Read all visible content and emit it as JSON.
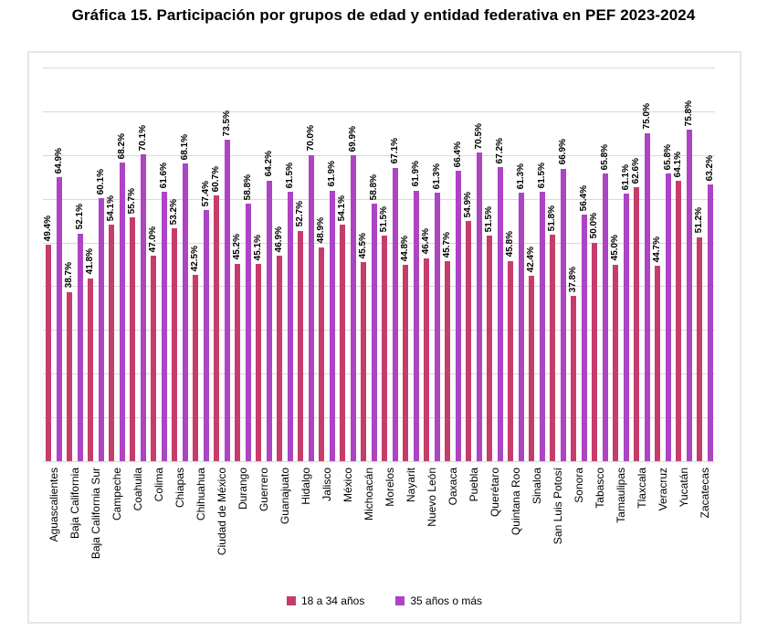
{
  "title": "Gráfica 15. Participación por grupos de edad y entidad federativa en PEF 2023-2024",
  "colors": {
    "series_18_34": "#c63d6b",
    "series_35_plus": "#ac44c4",
    "gridline": "#d9d9d9",
    "chart_border": "#e6e6e6"
  },
  "chart_data": {
    "type": "bar",
    "title": "Gráfica 15. Participación por grupos de edad y entidad federativa en PEF 2023-2024",
    "xlabel": "",
    "ylabel": "",
    "ylim": [
      0,
      90
    ],
    "gridline_step": 10,
    "grid": true,
    "y_axis_labels_visible": false,
    "legend_position": "bottom",
    "value_labels": "rotated_percent_one_decimal",
    "categories": [
      "Aguascalientes",
      "Baja California",
      "Baja California Sur",
      "Campeche",
      "Coahuila",
      "Colima",
      "Chiapas",
      "Chihuahua",
      "Ciudad de México",
      "Durango",
      "Guerrero",
      "Guanajuato",
      "Hidalgo",
      "Jalisco",
      "México",
      "Michoacán",
      "Morelos",
      "Nayarit",
      "Nuevo León",
      "Oaxaca",
      "Puebla",
      "Querétaro",
      "Quintana Roo",
      "Sinaloa",
      "San Luis Potosí",
      "Sonora",
      "Tabasco",
      "Tamaulipas",
      "Tlaxcala",
      "Veracruz",
      "Yucatán",
      "Zacatecas"
    ],
    "series": [
      {
        "name": "18 a 34 años",
        "color": "#c63d6b",
        "values": [
          49.4,
          38.7,
          41.8,
          54.1,
          55.7,
          47.0,
          53.2,
          42.5,
          60.7,
          45.2,
          45.1,
          46.9,
          52.7,
          48.9,
          54.1,
          45.5,
          51.5,
          44.8,
          46.4,
          45.7,
          54.9,
          51.5,
          45.8,
          42.4,
          51.8,
          37.8,
          50.0,
          45.0,
          62.6,
          44.7,
          64.1,
          51.2
        ]
      },
      {
        "name": "35 años o más",
        "color": "#ac44c4",
        "values": [
          64.9,
          52.1,
          60.1,
          68.2,
          70.1,
          61.6,
          68.1,
          57.4,
          73.5,
          58.8,
          64.2,
          61.5,
          70.0,
          61.9,
          69.9,
          58.8,
          67.1,
          61.9,
          61.3,
          66.4,
          70.5,
          67.2,
          61.3,
          61.5,
          66.9,
          56.4,
          65.8,
          61.1,
          75.0,
          65.8,
          75.8,
          63.2
        ]
      }
    ]
  }
}
